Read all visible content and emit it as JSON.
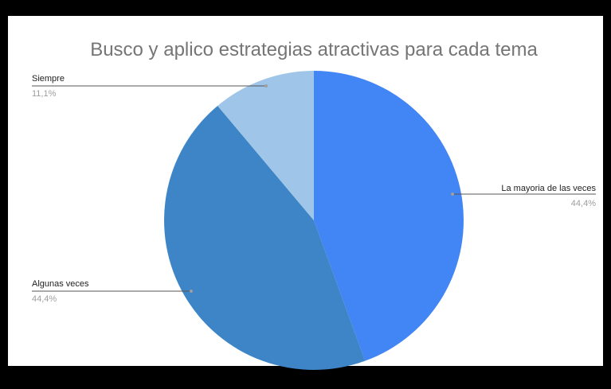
{
  "chart_data": {
    "type": "pie",
    "title": "Busco y aplico estrategias atractivas para cada tema",
    "slices": [
      {
        "label": "La mayoria de las veces",
        "value": 44.4,
        "percent_label": "44,4%",
        "color": "#4285f4"
      },
      {
        "label": "Algunas veces",
        "value": 44.4,
        "percent_label": "44,4%",
        "color": "#3d85c6"
      },
      {
        "label": "Siempre",
        "value": 11.1,
        "percent_label": "11,1%",
        "color": "#9fc5e8"
      }
    ],
    "legend": "none"
  }
}
